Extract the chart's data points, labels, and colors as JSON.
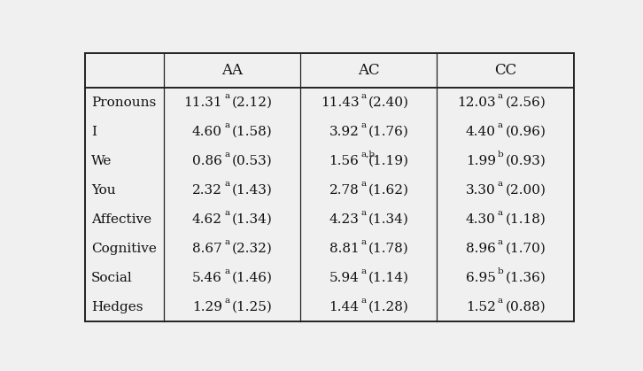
{
  "col_headers": [
    "AA",
    "AC",
    "CC"
  ],
  "row_labels": [
    "Pronouns",
    "I",
    "We",
    "You",
    "Affective",
    "Cognitive",
    "Social",
    "Hedges"
  ],
  "cells": [
    [
      [
        "11.31",
        "a",
        "(2.12)"
      ],
      [
        "11.43",
        "a",
        "(2.40)"
      ],
      [
        "12.03",
        "a",
        "(2.56)"
      ]
    ],
    [
      [
        "4.60",
        "a",
        "(1.58)"
      ],
      [
        "3.92",
        "a",
        "(1.76)"
      ],
      [
        "4.40",
        "a",
        "(0.96)"
      ]
    ],
    [
      [
        "0.86",
        "a",
        "(0.53)"
      ],
      [
        "1.56",
        "a,b",
        "(1.19)"
      ],
      [
        "1.99",
        "b",
        "(0.93)"
      ]
    ],
    [
      [
        "2.32",
        "a",
        "(1.43)"
      ],
      [
        "2.78",
        "a",
        "(1.62)"
      ],
      [
        "3.30",
        "a",
        "(2.00)"
      ]
    ],
    [
      [
        "4.62",
        "a",
        "(1.34)"
      ],
      [
        "4.23",
        "a",
        "(1.34)"
      ],
      [
        "4.30",
        "a",
        "(1.18)"
      ]
    ],
    [
      [
        "8.67",
        "a",
        "(2.32)"
      ],
      [
        "8.81",
        "a",
        "(1.78)"
      ],
      [
        "8.96",
        "a",
        "(1.70)"
      ]
    ],
    [
      [
        "5.46",
        "a",
        "(1.46)"
      ],
      [
        "5.94",
        "a",
        "(1.14)"
      ],
      [
        "6.95",
        "b",
        "(1.36)"
      ]
    ],
    [
      [
        "1.29",
        "a",
        "(1.25)"
      ],
      [
        "1.44",
        "a",
        "(1.28)"
      ],
      [
        "1.52",
        "a",
        "(0.88)"
      ]
    ]
  ],
  "bg_color": "#f0f0f0",
  "text_color": "#111111",
  "line_color": "#222222",
  "font_size_header": 12,
  "font_size_cell": 11,
  "font_size_label": 11,
  "font_size_super": 7.5
}
